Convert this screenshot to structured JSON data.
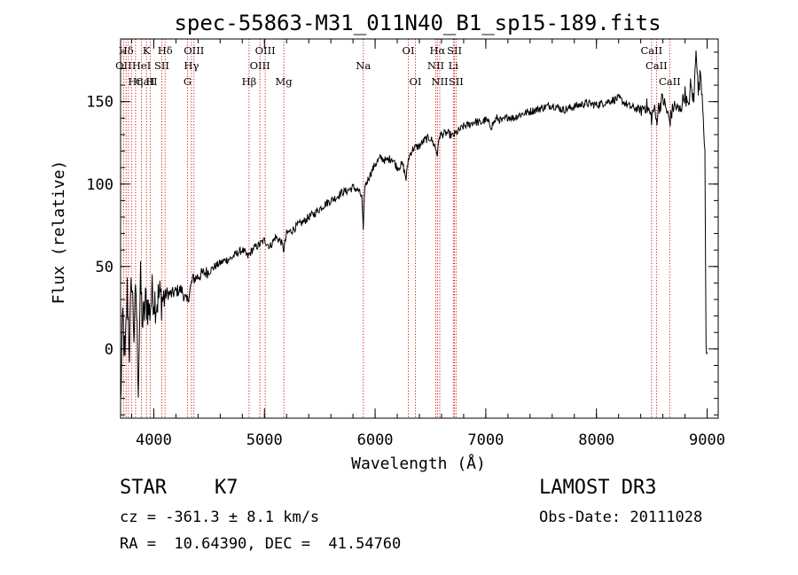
{
  "chart_data": {
    "type": "line",
    "title": "spec-55863-M31_011N40_B1_sp15-189.fits",
    "xlabel": "Wavelength (Å)",
    "ylabel": "Flux (relative)",
    "xlim": [
      3700,
      9100
    ],
    "ylim": [
      -42,
      188
    ],
    "xticks": [
      4000,
      5000,
      6000,
      7000,
      8000,
      9000
    ],
    "yticks": [
      0,
      50,
      100,
      150
    ],
    "x_minor_step": 200,
    "y_minor_step": 10,
    "series": [
      {
        "name": "spectrum",
        "x": [
          3700,
          3720,
          3740,
          3760,
          3780,
          3800,
          3820,
          3840,
          3860,
          3880,
          3900,
          3930,
          3960,
          3990,
          4020,
          4050,
          4080,
          4120,
          4160,
          4200,
          4250,
          4300,
          4350,
          4400,
          4450,
          4500,
          4550,
          4600,
          4650,
          4700,
          4750,
          4800,
          4850,
          4870,
          4900,
          4950,
          5000,
          5050,
          5100,
          5150,
          5175,
          5200,
          5250,
          5300,
          5350,
          5400,
          5450,
          5500,
          5550,
          5600,
          5650,
          5700,
          5750,
          5800,
          5850,
          5880,
          5893,
          5905,
          5950,
          6000,
          6050,
          6100,
          6150,
          6200,
          6250,
          6280,
          6300,
          6320,
          6350,
          6400,
          6450,
          6500,
          6540,
          6563,
          6580,
          6600,
          6650,
          6700,
          6750,
          6800,
          6850,
          6900,
          6950,
          7000,
          7050,
          7100,
          7150,
          7200,
          7250,
          7300,
          7400,
          7500,
          7600,
          7700,
          7800,
          7900,
          8000,
          8100,
          8200,
          8300,
          8400,
          8450,
          8498,
          8520,
          8542,
          8560,
          8600,
          8662,
          8700,
          8750,
          8800,
          8830,
          8850,
          8880,
          8900,
          8920,
          8940,
          8960,
          8980,
          8990,
          9000
        ],
        "y": [
          -35,
          20,
          -10,
          35,
          0,
          45,
          10,
          35,
          -20,
          40,
          15,
          30,
          22,
          35,
          28,
          32,
          30,
          34,
          33,
          35,
          36,
          28,
          42,
          44,
          46,
          47,
          50,
          52,
          54,
          55,
          58,
          60,
          56,
          58,
          61,
          63,
          66,
          62,
          68,
          65,
          60,
          70,
          72,
          75,
          77,
          80,
          82,
          85,
          88,
          90,
          92,
          95,
          96,
          98,
          96,
          92,
          70,
          98,
          105,
          112,
          116,
          114,
          116,
          110,
          112,
          103,
          115,
          119,
          122,
          123,
          127,
          128,
          123,
          118,
          129,
          130,
          131,
          129,
          132,
          135,
          136,
          138,
          137,
          139,
          135,
          140,
          138,
          141,
          140,
          142,
          144,
          146,
          148,
          145,
          147,
          149,
          148,
          150,
          152,
          147,
          145,
          148,
          140,
          146,
          138,
          146,
          152,
          138,
          148,
          144,
          155,
          145,
          160,
          150,
          185,
          155,
          168,
          150,
          120,
          0,
          -2
        ]
      }
    ],
    "spectral_lines": [
      {
        "label": "Hδ",
        "wavelength": 3750,
        "row": 0
      },
      {
        "label": "K",
        "wavelength": 3934,
        "row": 0
      },
      {
        "label": "Hδ",
        "wavelength": 4102,
        "row": 0
      },
      {
        "label": "OIII",
        "wavelength": 4363,
        "row": 0
      },
      {
        "label": "OIII",
        "wavelength": 5007,
        "row": 0
      },
      {
        "label": "OI",
        "wavelength": 6300,
        "row": 0
      },
      {
        "label": "Hα",
        "wavelength": 6563,
        "row": 0
      },
      {
        "label": "SII",
        "wavelength": 6717,
        "row": 0
      },
      {
        "label": "CaII",
        "wavelength": 8498,
        "row": 0
      },
      {
        "label": "OII",
        "wavelength": 3727,
        "row": 1
      },
      {
        "label": "HeI",
        "wavelength": 3889,
        "row": 1
      },
      {
        "label": "SII",
        "wavelength": 4072,
        "row": 1
      },
      {
        "label": "Hγ",
        "wavelength": 4340,
        "row": 1
      },
      {
        "label": "OIII",
        "wavelength": 4959,
        "row": 1
      },
      {
        "label": "Na",
        "wavelength": 5893,
        "row": 1
      },
      {
        "label": "NII",
        "wavelength": 6548,
        "row": 1
      },
      {
        "label": "Li",
        "wavelength": 6707,
        "row": 1
      },
      {
        "label": "CaII",
        "wavelength": 8542,
        "row": 1
      },
      {
        "label": "CaII",
        "wavelength": 3934,
        "row": 2
      },
      {
        "label": "Hη",
        "wavelength": 3835,
        "row": 2
      },
      {
        "label": "H",
        "wavelength": 3969,
        "row": 2
      },
      {
        "label": "G",
        "wavelength": 4305,
        "row": 2
      },
      {
        "label": "Hβ",
        "wavelength": 4861,
        "row": 2
      },
      {
        "label": "Mg",
        "wavelength": 5175,
        "row": 2
      },
      {
        "label": "OI",
        "wavelength": 6364,
        "row": 2
      },
      {
        "label": "NII",
        "wavelength": 6584,
        "row": 2
      },
      {
        "label": "SII",
        "wavelength": 6731,
        "row": 2
      },
      {
        "label": "CaII",
        "wavelength": 8662,
        "row": 2
      }
    ],
    "line_marker_wavelengths": [
      3727,
      3750,
      3771,
      3798,
      3835,
      3889,
      3934,
      3969,
      4072,
      4102,
      4305,
      4340,
      4363,
      4861,
      4959,
      5007,
      5175,
      5893,
      6300,
      6364,
      6548,
      6563,
      6584,
      6707,
      6717,
      6731,
      8498,
      8542,
      8662
    ]
  },
  "info": {
    "object_class": "STAR",
    "subclass": "K7",
    "survey": "LAMOST DR3",
    "redshift": "cz = -361.3 ± 8.1 km/s",
    "obs_date": "Obs-Date: 20111028",
    "coords": "RA =  10.64390, DEC =  41.54760"
  },
  "colors": {
    "spectrum": "#000000",
    "line_markers": "#cc0000",
    "axes": "#000000"
  }
}
